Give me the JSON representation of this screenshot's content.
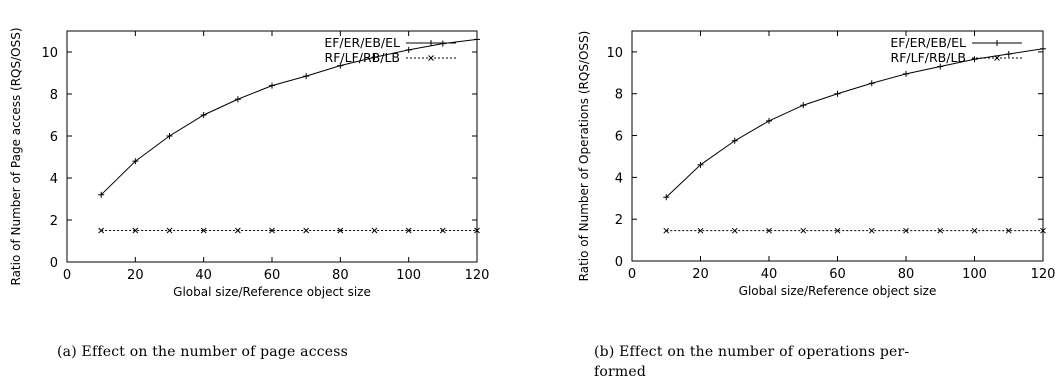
{
  "chart_data": [
    {
      "type": "line",
      "xlabel": "Global size/Reference object size",
      "ylabel": "Ratio of Number of Page access (RQS/OSS)",
      "xlim": [
        0,
        120
      ],
      "ylim": [
        0,
        11
      ],
      "xticks": [
        0,
        20,
        40,
        60,
        80,
        100,
        120
      ],
      "yticks": [
        0,
        2,
        4,
        6,
        8,
        10
      ],
      "grid": false,
      "legend_position": "top-right",
      "series": [
        {
          "name": "EF/ER/EB/EL",
          "marker": "+",
          "dash": "solid",
          "x": [
            10,
            20,
            30,
            40,
            50,
            60,
            70,
            80,
            90,
            100,
            110,
            120
          ],
          "y": [
            3.2,
            4.8,
            6.0,
            7.0,
            7.75,
            8.4,
            8.85,
            9.35,
            9.75,
            10.1,
            10.4,
            10.6
          ]
        },
        {
          "name": "RF/LF/RB/LB",
          "marker": "x",
          "dash": "dashed",
          "x": [
            10,
            20,
            30,
            40,
            50,
            60,
            70,
            80,
            90,
            100,
            110,
            120
          ],
          "y": [
            1.5,
            1.5,
            1.5,
            1.5,
            1.5,
            1.5,
            1.5,
            1.5,
            1.5,
            1.5,
            1.5,
            1.5
          ]
        }
      ]
    },
    {
      "type": "line",
      "xlabel": "Global size/Reference object size",
      "ylabel": "Ratio of Number of Operations (RQS/OSS)",
      "xlim": [
        0,
        120
      ],
      "ylim": [
        0,
        11
      ],
      "xticks": [
        0,
        20,
        40,
        60,
        80,
        100,
        120
      ],
      "yticks": [
        0,
        2,
        4,
        6,
        8,
        10
      ],
      "grid": false,
      "legend_position": "top-right",
      "series": [
        {
          "name": "EF/ER/EB/EL",
          "marker": "+",
          "dash": "solid",
          "x": [
            10,
            20,
            30,
            40,
            50,
            60,
            70,
            80,
            90,
            100,
            110,
            120
          ],
          "y": [
            3.05,
            4.6,
            5.75,
            6.7,
            7.45,
            8.0,
            8.5,
            8.95,
            9.3,
            9.65,
            9.9,
            10.15
          ]
        },
        {
          "name": "RF/LF/RB/LB",
          "marker": "x",
          "dash": "dashed",
          "x": [
            10,
            20,
            30,
            40,
            50,
            60,
            70,
            80,
            90,
            100,
            110,
            120
          ],
          "y": [
            1.45,
            1.45,
            1.45,
            1.45,
            1.45,
            1.45,
            1.45,
            1.45,
            1.45,
            1.45,
            1.45,
            1.45
          ]
        }
      ]
    }
  ],
  "captions": {
    "left": "(a) Effect on the number of page access",
    "right_line1": "(b) Effect on the number of operations per-",
    "right_line2": "formed"
  }
}
